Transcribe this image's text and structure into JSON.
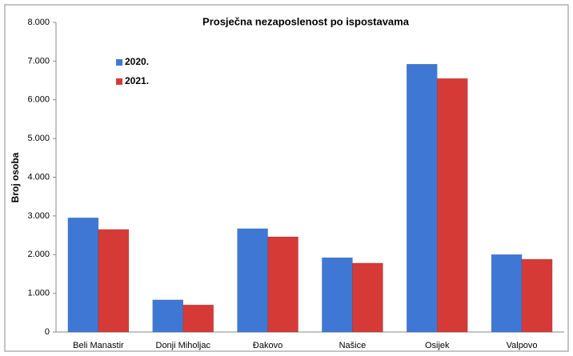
{
  "chart_data": {
    "type": "bar",
    "title": "Prosječna nezaposlenost po ispostavama",
    "y_label": "Broj osoba",
    "categories": [
      "Beli Manastir",
      "Donji Miholjac",
      "Đakovo",
      "Našice",
      "Osijek",
      "Valpovo"
    ],
    "series": [
      {
        "name": "2020.",
        "color": "#3f78d4",
        "values": [
          2950,
          830,
          2670,
          1920,
          6920,
          2000
        ]
      },
      {
        "name": "2021.",
        "color": "#d63a37",
        "values": [
          2650,
          700,
          2460,
          1780,
          6550,
          1880
        ]
      }
    ],
    "ylim": [
      0,
      8000
    ],
    "yticks": [
      0,
      {
        "value": 1000,
        "label": "1.000"
      },
      {
        "value": 2000,
        "label": "2.000"
      },
      {
        "value": 3000,
        "label": "3.000"
      },
      {
        "value": 4000,
        "label": "4.000"
      },
      {
        "value": 5000,
        "label": "5.000"
      },
      {
        "value": 6000,
        "label": "6.000"
      },
      {
        "value": 7000,
        "label": "7.000"
      },
      {
        "value": 8000,
        "label": "8.000"
      }
    ],
    "legend": "upper left"
  }
}
